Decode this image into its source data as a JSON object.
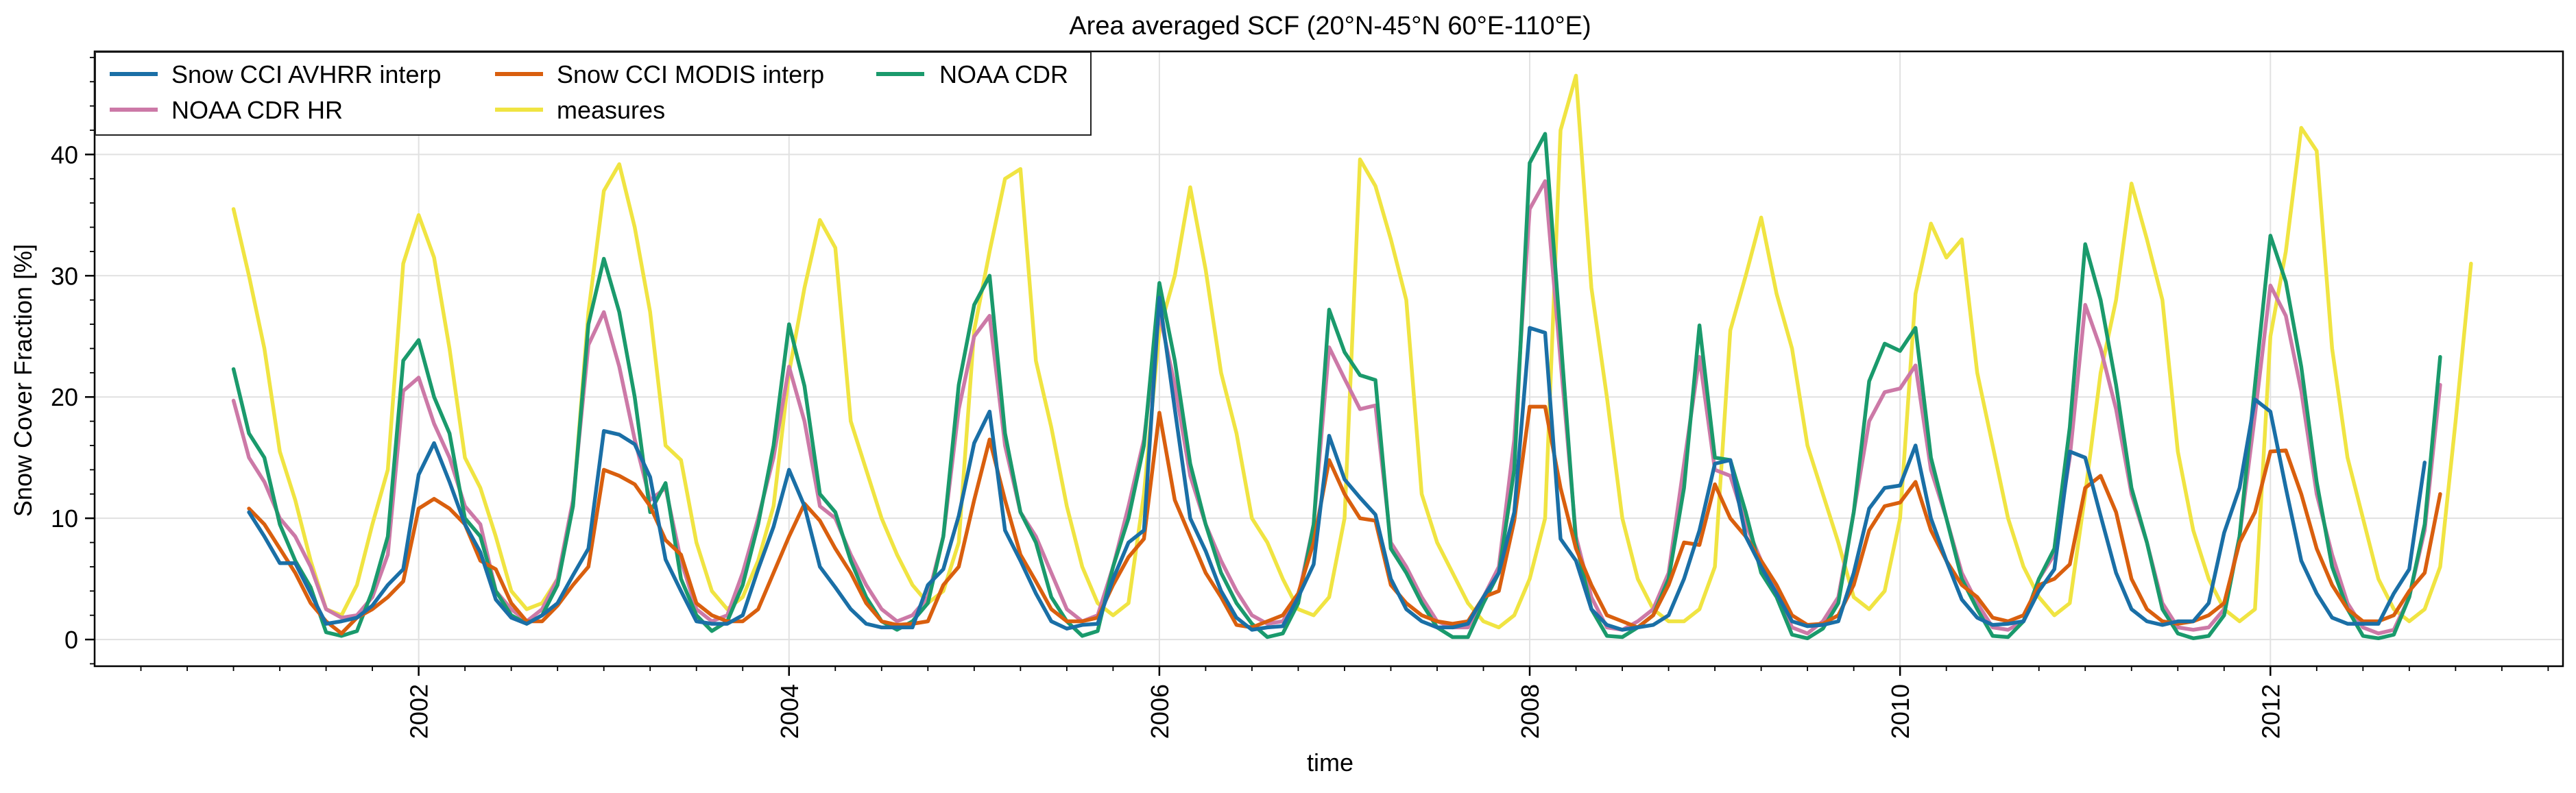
{
  "chart_data": {
    "type": "line",
    "title": "Area averaged SCF (20°N-45°N 60°E-110°E)",
    "xlabel": "time",
    "ylabel": "Snow Cover Fraction [%]",
    "xlim": [
      2000.25,
      2013.58
    ],
    "ylim": [
      -2.2,
      48.5
    ],
    "x_ticks": [
      2002,
      2004,
      2006,
      2008,
      2010,
      2012
    ],
    "x_tick_labels": [
      "2002",
      "2004",
      "2006",
      "2008",
      "2010",
      "2012"
    ],
    "y_ticks": [
      0,
      10,
      20,
      30,
      40
    ],
    "y_tick_labels": [
      "0",
      "10",
      "20",
      "30",
      "40"
    ],
    "grid": true,
    "legend_position": "top-left",
    "legend_columns": 3,
    "x_start": 2001.0,
    "x_step_months": 1,
    "series": [
      {
        "name": "Snow CCI AVHRR interp",
        "color": "#1a6fa6",
        "start_index": 1,
        "values": [
          10.5,
          8.5,
          6.3,
          6.3,
          3.8,
          1.3,
          1.5,
          1.8,
          2.8,
          4.5,
          5.8,
          13.6,
          16.2,
          13.0,
          9.5,
          7.2,
          3.3,
          1.8,
          1.3,
          2.0,
          3.0,
          5.3,
          7.5,
          17.2,
          16.9,
          16.1,
          13.4,
          6.6,
          4.0,
          1.5,
          1.3,
          1.3,
          2.0,
          5.8,
          9.3,
          14.0,
          11.0,
          6.0,
          4.3,
          2.5,
          1.3,
          1.0,
          1.0,
          1.0,
          4.5,
          5.8,
          10.2,
          16.2,
          18.8,
          9.0,
          6.5,
          3.8,
          1.5,
          0.9,
          1.2,
          1.3,
          5.0,
          8.0,
          9.0,
          28.2,
          19.0,
          10.0,
          7.3,
          4.0,
          1.8,
          0.8,
          1.0,
          1.1,
          3.5,
          6.2,
          16.8,
          13.2,
          11.7,
          10.3,
          5.0,
          2.5,
          1.5,
          1.0,
          1.0,
          1.3,
          3.5,
          5.5,
          10.5,
          25.7,
          25.3,
          8.3,
          6.5,
          2.5,
          1.2,
          0.8,
          1.0,
          1.2,
          2.0,
          5.0,
          9.0,
          14.5,
          14.8,
          8.5,
          6.0,
          3.8,
          1.5,
          1.1,
          1.2,
          1.5,
          5.5,
          10.8,
          12.5,
          12.7,
          16.0,
          10.0,
          6.5,
          3.3,
          1.8,
          1.2,
          1.3,
          1.5,
          4.0,
          5.8,
          15.5,
          15.0,
          10.2,
          5.5,
          2.5,
          1.5,
          1.2,
          1.5,
          1.5,
          3.0,
          8.8,
          12.5,
          19.8,
          18.8,
          12.5,
          6.5,
          3.8,
          1.8,
          1.3,
          1.3,
          1.3,
          3.8,
          5.8,
          14.6
        ]
      },
      {
        "name": "Snow CCI MODIS interp",
        "color": "#d95f0e",
        "start_index": 1,
        "values": [
          10.8,
          9.5,
          7.5,
          5.5,
          3.0,
          1.5,
          0.5,
          1.8,
          2.5,
          3.5,
          4.8,
          10.8,
          11.6,
          10.8,
          9.5,
          6.5,
          5.8,
          3.0,
          1.5,
          1.5,
          2.8,
          4.5,
          6.0,
          14.0,
          13.5,
          12.8,
          11.0,
          8.2,
          7.0,
          3.0,
          2.0,
          1.5,
          1.5,
          2.5,
          5.5,
          8.5,
          11.2,
          9.8,
          7.5,
          5.5,
          3.0,
          1.5,
          1.2,
          1.3,
          1.5,
          4.5,
          6.0,
          11.5,
          16.5,
          11.5,
          7.0,
          4.8,
          2.5,
          1.5,
          1.5,
          1.8,
          4.5,
          6.8,
          8.3,
          18.7,
          11.5,
          8.5,
          5.5,
          3.5,
          1.2,
          1.0,
          1.5,
          2.0,
          3.8,
          8.0,
          14.8,
          12.0,
          10.0,
          9.8,
          4.5,
          3.0,
          2.0,
          1.5,
          1.3,
          1.5,
          3.5,
          4.0,
          9.8,
          19.2,
          19.2,
          12.5,
          7.5,
          4.5,
          2.0,
          1.5,
          1.0,
          2.0,
          4.5,
          8.0,
          7.8,
          12.8,
          10.0,
          8.5,
          6.5,
          4.5,
          2.0,
          1.2,
          1.3,
          2.0,
          4.5,
          9.0,
          11.0,
          11.3,
          13.0,
          9.0,
          6.5,
          4.5,
          3.5,
          1.8,
          1.5,
          2.0,
          4.5,
          5.0,
          6.2,
          12.5,
          13.5,
          10.5,
          5.0,
          2.5,
          1.5,
          1.3,
          1.5,
          2.0,
          3.0,
          8.0,
          10.5,
          15.5,
          15.6,
          12.0,
          7.5,
          4.5,
          2.5,
          1.5,
          1.5,
          2.0,
          4.0,
          5.5,
          12.0
        ]
      },
      {
        "name": "NOAA CDR",
        "color": "#1a9a6c",
        "start_index": 0,
        "values": [
          22.3,
          17.0,
          15.0,
          9.5,
          6.5,
          4.3,
          0.6,
          0.3,
          0.7,
          4.0,
          8.5,
          23.0,
          24.7,
          20.0,
          17.0,
          10.0,
          8.5,
          4.0,
          2.0,
          1.3,
          2.0,
          4.5,
          11.0,
          26.0,
          31.4,
          27.0,
          20.0,
          10.5,
          12.9,
          5.0,
          2.0,
          0.7,
          1.5,
          4.5,
          9.5,
          16.0,
          26.0,
          20.9,
          12.0,
          10.5,
          6.5,
          3.5,
          1.5,
          0.8,
          1.5,
          3.0,
          8.5,
          21.0,
          27.6,
          30.0,
          17.0,
          10.5,
          8.0,
          3.5,
          1.5,
          0.3,
          0.7,
          6.0,
          10.0,
          16.0,
          29.4,
          23.0,
          14.5,
          9.5,
          5.5,
          3.0,
          1.3,
          0.2,
          0.5,
          3.0,
          9.5,
          27.2,
          23.7,
          21.8,
          21.4,
          7.5,
          5.5,
          3.0,
          1.0,
          0.2,
          0.2,
          3.0,
          5.5,
          14.0,
          39.3,
          41.7,
          25.0,
          8.0,
          2.5,
          0.3,
          0.2,
          1.0,
          2.0,
          5.0,
          12.5,
          25.9,
          15.0,
          14.8,
          10.5,
          5.5,
          3.5,
          0.4,
          0.1,
          0.9,
          3.0,
          10.5,
          21.3,
          24.4,
          23.8,
          25.7,
          15.0,
          10.0,
          5.0,
          2.5,
          0.3,
          0.2,
          1.5,
          5.0,
          7.5,
          17.5,
          32.6,
          28.0,
          21.0,
          12.5,
          8.0,
          2.5,
          0.5,
          0.1,
          0.3,
          2.0,
          8.5,
          21.0,
          33.3,
          29.5,
          22.5,
          13.0,
          6.0,
          2.5,
          0.3,
          0.1,
          0.4,
          3.5,
          9.5,
          23.3
        ]
      },
      {
        "name": "NOAA CDR HR",
        "color": "#cc79a7",
        "start_index": 0,
        "values": [
          19.7,
          15.0,
          13.0,
          10.0,
          8.5,
          6.0,
          2.5,
          1.8,
          2.0,
          3.5,
          7.0,
          20.5,
          21.6,
          17.8,
          15.0,
          11.0,
          9.5,
          4.0,
          2.5,
          1.5,
          2.5,
          5.0,
          11.5,
          24.3,
          27.0,
          22.5,
          16.5,
          11.5,
          12.5,
          6.5,
          2.5,
          1.5,
          2.0,
          5.5,
          10.0,
          15.0,
          22.5,
          18.0,
          11.0,
          10.0,
          7.0,
          4.5,
          2.5,
          1.5,
          2.0,
          3.5,
          8.5,
          19.0,
          25.0,
          26.7,
          16.0,
          10.5,
          8.5,
          5.5,
          2.5,
          1.5,
          2.0,
          6.0,
          11.0,
          16.5,
          26.9,
          21.0,
          13.5,
          9.5,
          6.5,
          4.0,
          2.0,
          1.3,
          1.5,
          3.5,
          9.5,
          24.1,
          21.5,
          19.0,
          19.3,
          8.0,
          6.0,
          3.5,
          1.5,
          1.0,
          1.0,
          3.5,
          6.0,
          16.5,
          35.5,
          37.8,
          23.0,
          8.5,
          3.5,
          1.0,
          0.8,
          1.5,
          2.5,
          5.5,
          14.5,
          23.3,
          14.0,
          13.5,
          9.5,
          6.5,
          4.0,
          1.0,
          0.5,
          1.5,
          3.5,
          10.5,
          18.0,
          20.4,
          20.7,
          22.6,
          14.0,
          10.0,
          5.5,
          3.0,
          1.0,
          0.8,
          1.5,
          5.0,
          7.0,
          15.0,
          27.6,
          24.0,
          19.0,
          12.0,
          8.0,
          3.0,
          1.0,
          0.8,
          1.0,
          2.5,
          8.5,
          18.5,
          29.2,
          26.7,
          20.5,
          12.0,
          7.0,
          3.0,
          1.0,
          0.5,
          0.8,
          3.5,
          9.0,
          21.0
        ]
      },
      {
        "name": "measures",
        "color": "#f0e442",
        "start_index": 0,
        "values": [
          35.5,
          30.0,
          24.0,
          15.5,
          11.5,
          6.5,
          2.5,
          2.0,
          4.5,
          9.5,
          14.0,
          31.0,
          35.0,
          31.5,
          24.0,
          15.0,
          12.5,
          8.5,
          4.0,
          2.5,
          3.0,
          5.0,
          11.0,
          27.0,
          37.0,
          39.2,
          34.0,
          27.0,
          16.0,
          14.8,
          8.0,
          4.0,
          2.5,
          3.5,
          6.5,
          11.0,
          22.0,
          29.0,
          34.6,
          32.3,
          18.0,
          14.0,
          10.0,
          7.0,
          4.5,
          3.0,
          4.0,
          8.0,
          25.5,
          32.0,
          38.0,
          38.8,
          23.0,
          17.5,
          11.0,
          6.0,
          3.0,
          2.0,
          3.0,
          12.0,
          25.5,
          30.0,
          37.3,
          30.5,
          22.0,
          17.0,
          10.0,
          8.0,
          5.0,
          2.5,
          2.0,
          3.5,
          10.0,
          39.6,
          37.4,
          33.0,
          28.0,
          12.0,
          8.0,
          5.5,
          3.0,
          1.5,
          1.0,
          2.0,
          5.0,
          10.0,
          42.0,
          46.5,
          29.0,
          20.0,
          10.0,
          5.0,
          2.5,
          1.5,
          1.5,
          2.5,
          6.0,
          25.5,
          30.0,
          34.8,
          28.5,
          24.0,
          16.0,
          12.0,
          8.0,
          3.5,
          2.5,
          4.0,
          10.0,
          28.5,
          34.3,
          31.5,
          33.0,
          22.0,
          16.0,
          10.0,
          6.0,
          3.5,
          2.0,
          3.0,
          12.0,
          22.0,
          28.0,
          37.6,
          33.0,
          28.0,
          15.5,
          9.0,
          5.0,
          2.5,
          1.5,
          2.5,
          25.0,
          32.0,
          42.2,
          40.3,
          24.0,
          15.0,
          10.0,
          5.0,
          2.5,
          1.5,
          2.5,
          6.0,
          18.0,
          31.0
        ]
      }
    ]
  }
}
